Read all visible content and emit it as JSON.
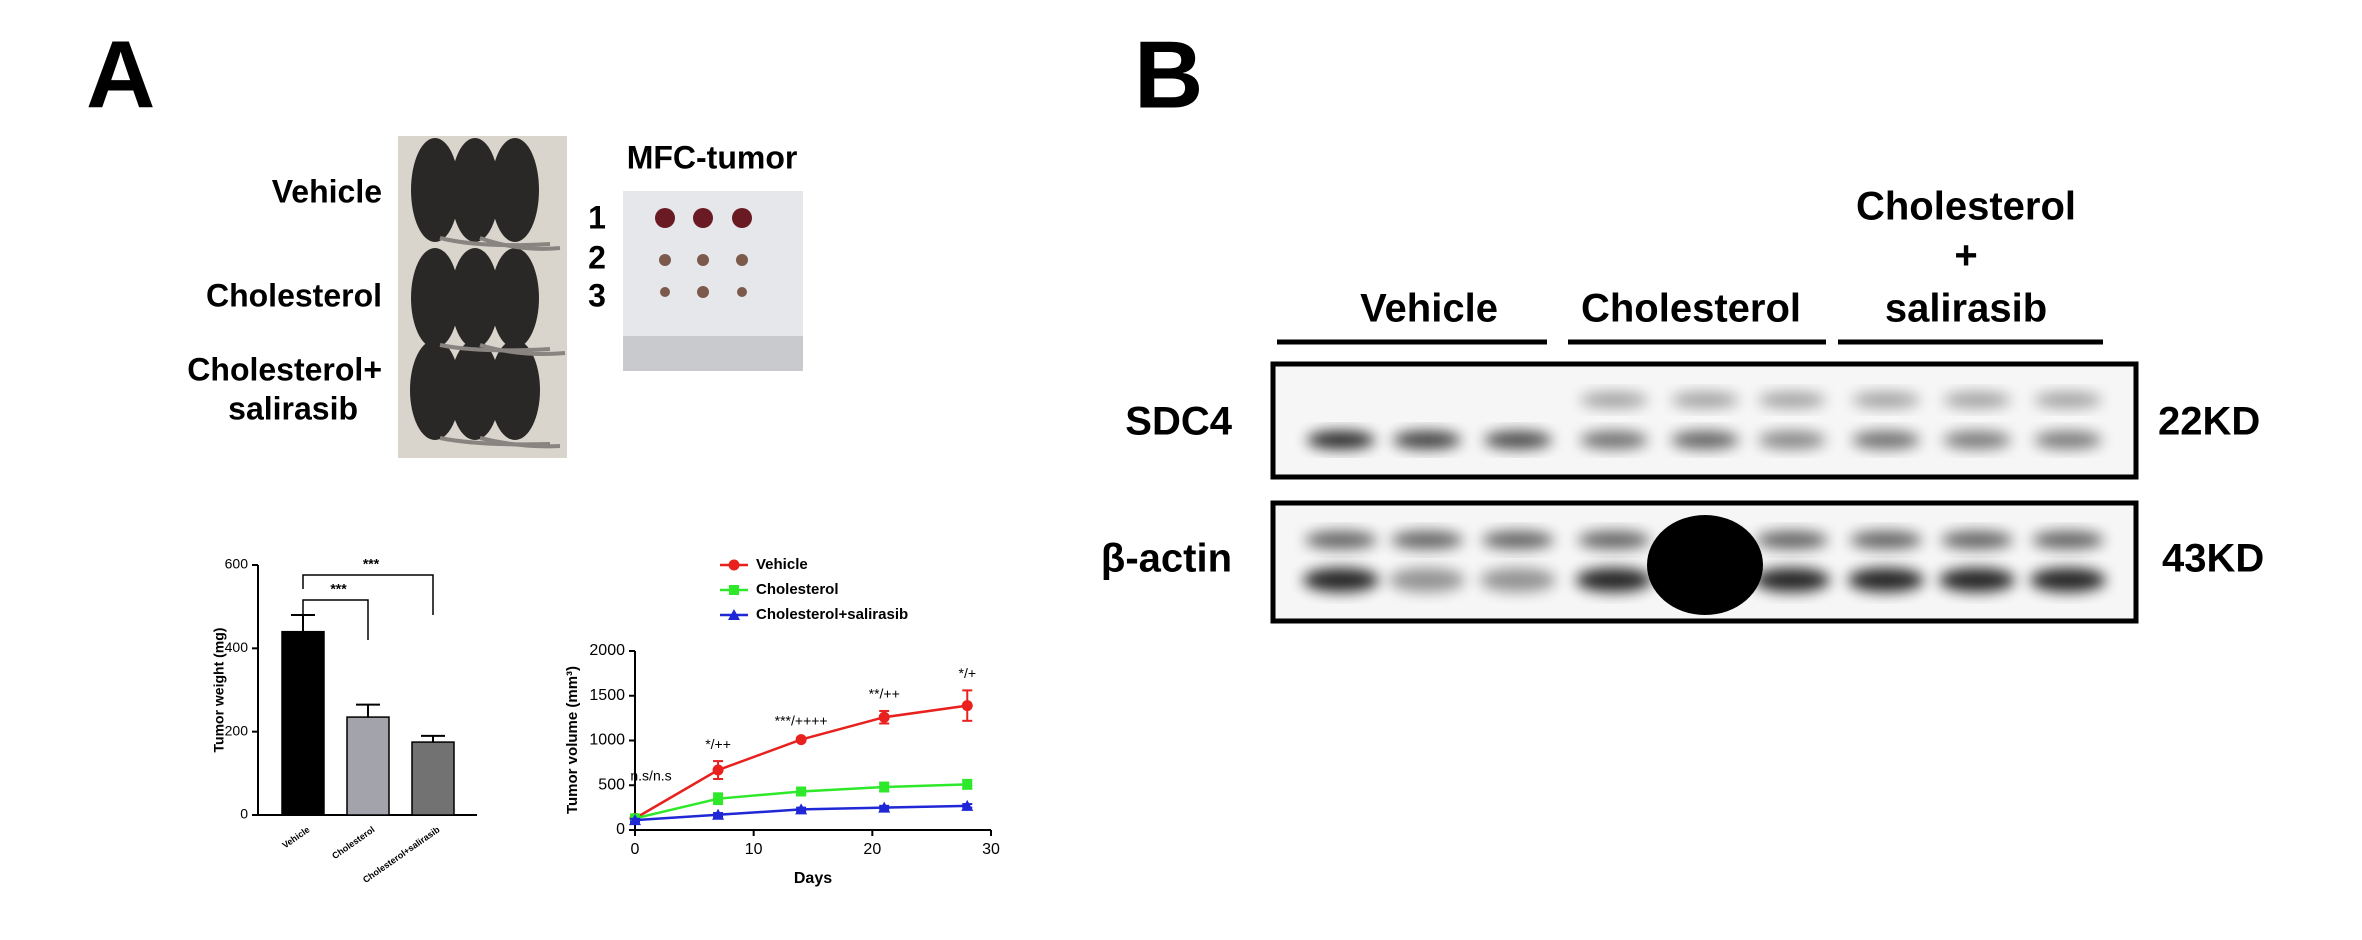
{
  "panel_labels": [
    "A",
    "B"
  ],
  "photo": {
    "group_labels": [
      "Vehicle",
      "Cholesterol",
      "Cholesterol+",
      "salirasib"
    ],
    "tumor_title": "MFC-tumor",
    "row_numbers": [
      "1",
      "2",
      "3"
    ]
  },
  "blot": {
    "lane_groups": [
      "Vehicle",
      "Cholesterol"
    ],
    "third_group": [
      "Cholesterol",
      "+",
      "salirasib"
    ],
    "rows": [
      {
        "protein": "SDC4",
        "size": "22KD"
      },
      {
        "protein": "β-actin",
        "size": "43KD"
      }
    ]
  },
  "chart_data": [
    {
      "type": "bar",
      "ylabel": "Tumor weight (mg)",
      "categories": [
        "Vehicle",
        "Cholesterol",
        "Cholesterol+salirasib"
      ],
      "values": [
        440,
        235,
        175
      ],
      "errors": [
        40,
        30,
        15
      ],
      "colors": [
        "#000000",
        "#a3a3ab",
        "#727272"
      ],
      "ylim": [
        0,
        600
      ],
      "yticks": [
        0,
        200,
        400,
        600
      ],
      "significance": [
        "***",
        "***"
      ]
    },
    {
      "type": "line",
      "xlabel": "Days",
      "ylabel": "Tumor volume (mm³)",
      "x": [
        0,
        7,
        14,
        21,
        28
      ],
      "series": [
        {
          "name": "Vehicle",
          "color": "#e8211e",
          "marker": "circle",
          "values": [
            130,
            670,
            1010,
            1260,
            1390
          ],
          "errors": [
            20,
            100,
            20,
            70,
            170
          ]
        },
        {
          "name": "Cholesterol",
          "color": "#2ee82a",
          "marker": "square",
          "values": [
            130,
            350,
            430,
            480,
            510
          ],
          "errors": [
            20,
            60,
            30,
            50,
            50
          ]
        },
        {
          "name": "Cholesterol+salirasib",
          "color": "#1f27d6",
          "marker": "triangle",
          "values": [
            110,
            170,
            230,
            250,
            270
          ],
          "errors": [
            15,
            20,
            20,
            20,
            20
          ]
        }
      ],
      "annotations": [
        "n.s/n.s",
        "*/++",
        "***/++++",
        "**/++",
        "*/+"
      ],
      "xlim": [
        0,
        30
      ],
      "xticks": [
        0,
        10,
        20,
        30
      ],
      "ylim": [
        0,
        2000
      ],
      "yticks": [
        0,
        500,
        1000,
        1500,
        2000
      ]
    }
  ]
}
